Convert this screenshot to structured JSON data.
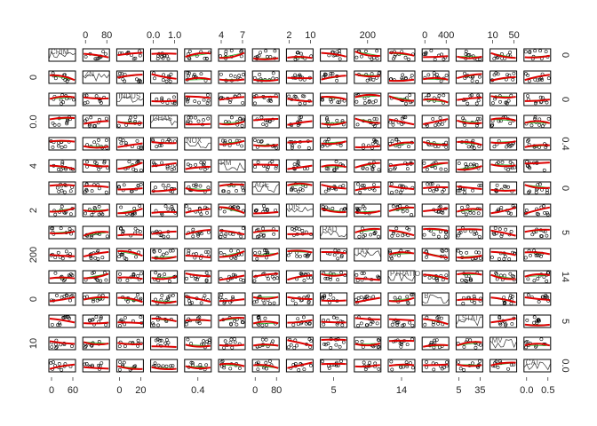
{
  "variables": [
    {
      "name": "CRIM",
      "column_ticks": [
        "0",
        "60"
      ],
      "row_ticks": [
        "0"
      ]
    },
    {
      "name": "ZN",
      "column_ticks": [
        "0",
        "80"
      ],
      "row_ticks": [
        "0"
      ]
    },
    {
      "name": "INDUS",
      "column_ticks": [
        "0",
        "20"
      ],
      "row_ticks": [
        "0"
      ]
    },
    {
      "name": "CHAS",
      "column_ticks": [
        "0.0",
        "1.0"
      ],
      "row_ticks": [
        "0.0"
      ]
    },
    {
      "name": "NOX",
      "column_ticks": [
        "0.4"
      ],
      "row_ticks": [
        "0.4"
      ]
    },
    {
      "name": "RM",
      "column_ticks": [
        "4",
        "7"
      ],
      "row_ticks": [
        "4"
      ]
    },
    {
      "name": "AGE",
      "column_ticks": [
        "0",
        "80"
      ],
      "row_ticks": [
        "0"
      ]
    },
    {
      "name": "DIS",
      "column_ticks": [
        "2",
        "10"
      ],
      "row_ticks": [
        "2"
      ]
    },
    {
      "name": "RAD",
      "column_ticks": [
        "5"
      ],
      "row_ticks": [
        "5"
      ]
    },
    {
      "name": "TAX",
      "column_ticks": [
        "200"
      ],
      "row_ticks": [
        "200"
      ]
    },
    {
      "name": "PTRATIO",
      "column_ticks": [
        "14"
      ],
      "row_ticks": [
        "14"
      ]
    },
    {
      "name": "B",
      "column_ticks": [
        "0",
        "400"
      ],
      "row_ticks": [
        "0"
      ]
    },
    {
      "name": "LSTAT",
      "column_ticks": [
        "5",
        "35"
      ],
      "row_ticks": [
        "5"
      ]
    },
    {
      "name": "MV",
      "column_ticks": [
        "10",
        "50"
      ],
      "row_ticks": [
        "10"
      ]
    },
    {
      "name": "CAT",
      "column_ticks": [
        "0.0",
        "0.5"
      ],
      "row_ticks": [
        "0.0"
      ]
    }
  ]
}
